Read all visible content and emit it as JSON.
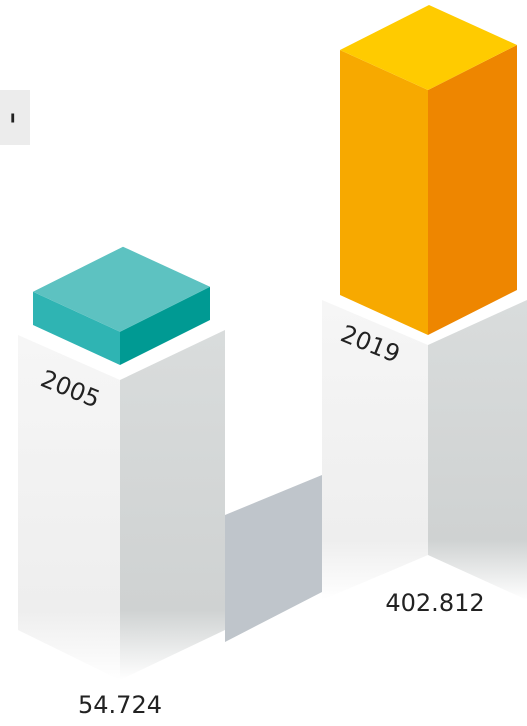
{
  "tab_label": "ı",
  "chart_data": {
    "type": "bar",
    "categories": [
      "2005",
      "2019"
    ],
    "values": [
      54724,
      402812
    ],
    "value_labels": [
      "54.724",
      "402.812"
    ],
    "colors": [
      [
        "#5dc2c1",
        "#2fb4b3",
        "#009a93"
      ],
      [
        "#ffcb00",
        "#f7a900",
        "#ee8600"
      ]
    ]
  }
}
